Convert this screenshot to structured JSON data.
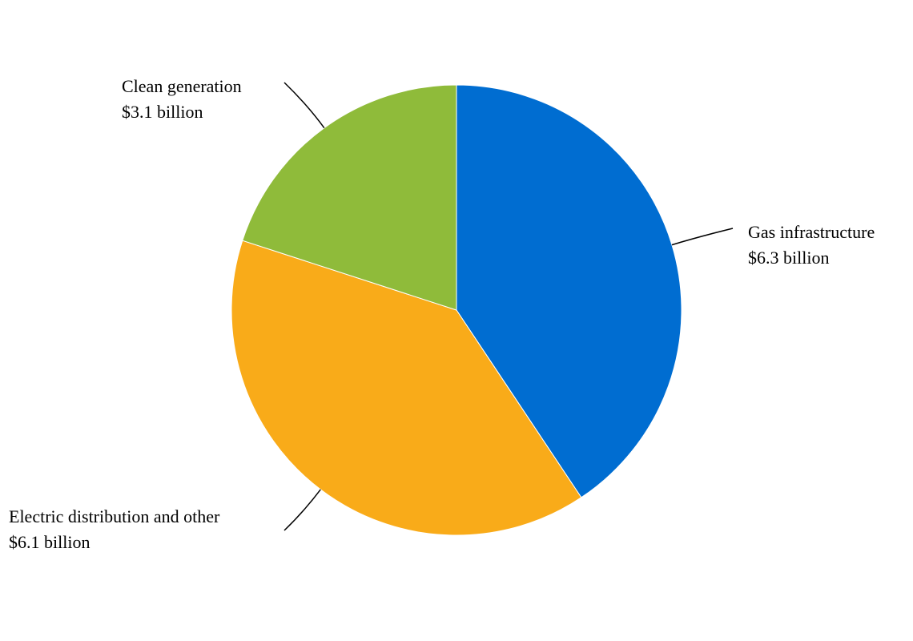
{
  "chart_data": {
    "type": "pie",
    "categories": [
      "Gas infrastructure",
      "Electric distribution and other",
      "Clean generation"
    ],
    "values": [
      6.3,
      6.1,
      3.1
    ],
    "value_labels": [
      "$6.3 billion",
      "$6.1 billion",
      "$3.1 billion"
    ],
    "colors": [
      "#006dd1",
      "#f9ab19",
      "#8fbb3a"
    ]
  }
}
